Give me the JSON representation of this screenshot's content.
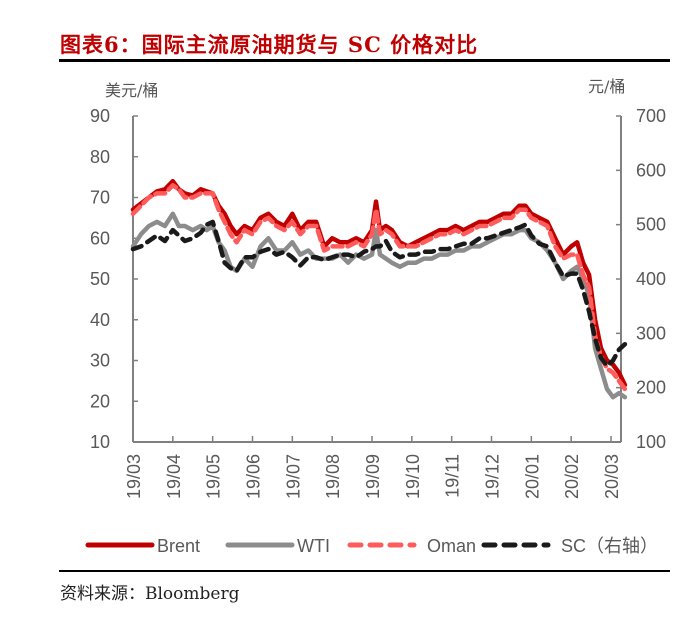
{
  "header": {
    "title": "图表6：国际主流原油期货与 SC 价格对比"
  },
  "footer": {
    "source": "资料来源：Bloomberg"
  },
  "chart_data": {
    "type": "line",
    "title": "图表6：国际主流原油期货与 SC 价格对比",
    "ylabel": "美元/桶",
    "y2label": "元/桶",
    "ylim": [
      10,
      90
    ],
    "y2lim": [
      100,
      700
    ],
    "yticks": [
      "90",
      "80",
      "70",
      "60",
      "50",
      "40",
      "30",
      "20",
      "10"
    ],
    "y2ticks": [
      "700",
      "600",
      "500",
      "400",
      "300",
      "200",
      "100"
    ],
    "categories": [
      "19/03",
      "19/04",
      "19/05",
      "19/06",
      "19/07",
      "19/08",
      "19/09",
      "19/10",
      "19/11",
      "19/12",
      "20/01",
      "20/02",
      "20/03"
    ],
    "x_unit": "months since 19/03",
    "legend_position": "bottom",
    "colors": {
      "brent": "#C00000",
      "wti": "#8C8C8C",
      "oman": "#FF5B5B",
      "sc": "#1A1A1A",
      "axis": "#808080"
    },
    "series": [
      {
        "name": "Brent",
        "axis": "left",
        "style": "solid",
        "x": [
          0,
          0.2,
          0.4,
          0.6,
          0.8,
          1.0,
          1.15,
          1.3,
          1.5,
          1.7,
          1.85,
          2.0,
          2.15,
          2.3,
          2.45,
          2.6,
          2.8,
          3.0,
          3.2,
          3.4,
          3.6,
          3.8,
          4.0,
          4.2,
          4.4,
          4.6,
          4.8,
          5.0,
          5.2,
          5.4,
          5.6,
          5.8,
          6.0,
          6.1,
          6.2,
          6.35,
          6.5,
          6.7,
          6.9,
          7.1,
          7.3,
          7.5,
          7.7,
          7.9,
          8.1,
          8.3,
          8.5,
          8.7,
          8.9,
          9.1,
          9.3,
          9.5,
          9.7,
          9.85,
          10.0,
          10.2,
          10.4,
          10.6,
          10.8,
          11.0,
          11.15,
          11.3,
          11.45,
          11.6,
          11.75,
          11.9,
          12.05,
          12.2,
          12.35
        ],
        "values": [
          67,
          68.5,
          70,
          71.5,
          72,
          74,
          72,
          71,
          70.5,
          72,
          71.5,
          71,
          68,
          66,
          63,
          61,
          63,
          62,
          65,
          66,
          64,
          63,
          66,
          62,
          64,
          64,
          58,
          60,
          59,
          59,
          60,
          59,
          62,
          69,
          62,
          63,
          62,
          59,
          58,
          59,
          60,
          61,
          62,
          62,
          63,
          62,
          63,
          64,
          64,
          65,
          66,
          66,
          68,
          68,
          66,
          65,
          64,
          60,
          56,
          58,
          59,
          54,
          51,
          40,
          33,
          30,
          29,
          27,
          24
        ]
      },
      {
        "name": "WTI",
        "axis": "left",
        "style": "solid",
        "x": [
          0,
          0.2,
          0.4,
          0.6,
          0.8,
          1.0,
          1.15,
          1.3,
          1.5,
          1.7,
          1.85,
          2.0,
          2.15,
          2.3,
          2.45,
          2.6,
          2.8,
          3.0,
          3.2,
          3.4,
          3.6,
          3.8,
          4.0,
          4.2,
          4.4,
          4.6,
          4.8,
          5.0,
          5.2,
          5.4,
          5.6,
          5.8,
          6.0,
          6.1,
          6.2,
          6.35,
          6.5,
          6.7,
          6.9,
          7.1,
          7.3,
          7.5,
          7.7,
          7.9,
          8.1,
          8.3,
          8.5,
          8.7,
          8.9,
          9.1,
          9.3,
          9.5,
          9.7,
          9.85,
          10.0,
          10.2,
          10.4,
          10.6,
          10.8,
          11.0,
          11.15,
          11.3,
          11.45,
          11.6,
          11.75,
          11.9,
          12.05,
          12.2,
          12.35
        ],
        "values": [
          58,
          61,
          63,
          64,
          63,
          66,
          63,
          63,
          62,
          63,
          62,
          63,
          59,
          57,
          53,
          52,
          55,
          53,
          58,
          60,
          57,
          57,
          59,
          56,
          57,
          55,
          55,
          55,
          56,
          54,
          56,
          55,
          56,
          62,
          56,
          55,
          54,
          53,
          54,
          54,
          55,
          55,
          56,
          56,
          57,
          57,
          58,
          58,
          59,
          60,
          61,
          61,
          62,
          62,
          60,
          59,
          57,
          54,
          50,
          52,
          53,
          50,
          46,
          33,
          28,
          23,
          21,
          22,
          21
        ]
      },
      {
        "name": "Oman",
        "axis": "left",
        "style": "dashed",
        "x": [
          0,
          0.2,
          0.4,
          0.6,
          0.8,
          1.0,
          1.15,
          1.3,
          1.5,
          1.7,
          1.85,
          2.0,
          2.15,
          2.3,
          2.45,
          2.6,
          2.8,
          3.0,
          3.2,
          3.4,
          3.6,
          3.8,
          4.0,
          4.2,
          4.4,
          4.6,
          4.8,
          5.0,
          5.2,
          5.4,
          5.6,
          5.8,
          6.0,
          6.1,
          6.2,
          6.35,
          6.5,
          6.7,
          6.9,
          7.1,
          7.3,
          7.5,
          7.7,
          7.9,
          8.1,
          8.3,
          8.5,
          8.7,
          8.9,
          9.1,
          9.3,
          9.5,
          9.7,
          9.85,
          10.0,
          10.2,
          10.4,
          10.6,
          10.8,
          11.0,
          11.15,
          11.3,
          11.45,
          11.6,
          11.75,
          11.9,
          12.05,
          12.2,
          12.35
        ],
        "values": [
          66,
          68,
          70,
          71,
          71,
          73,
          72,
          70,
          70,
          71,
          71,
          71,
          67,
          64,
          61,
          59,
          62,
          61,
          64,
          65,
          63,
          62,
          64,
          61,
          63,
          63,
          57,
          58,
          58,
          58,
          59,
          58,
          61,
          67,
          61,
          62,
          61,
          58,
          58,
          58,
          59,
          60,
          61,
          61,
          62,
          61,
          62,
          63,
          63,
          64,
          65,
          65,
          67,
          67,
          65,
          64,
          63,
          58,
          55,
          56,
          56,
          51,
          48,
          36,
          31,
          28,
          27,
          25,
          23
        ]
      },
      {
        "name": "SC（右轴）",
        "axis": "right",
        "style": "dashed",
        "x": [
          0,
          0.2,
          0.4,
          0.6,
          0.8,
          1.0,
          1.15,
          1.3,
          1.5,
          1.7,
          1.85,
          2.0,
          2.15,
          2.3,
          2.45,
          2.6,
          2.8,
          3.0,
          3.2,
          3.4,
          3.6,
          3.8,
          4.0,
          4.2,
          4.4,
          4.6,
          4.8,
          5.0,
          5.2,
          5.4,
          5.6,
          5.8,
          6.0,
          6.1,
          6.2,
          6.35,
          6.5,
          6.7,
          6.9,
          7.1,
          7.3,
          7.5,
          7.7,
          7.9,
          8.1,
          8.3,
          8.5,
          8.7,
          8.9,
          9.1,
          9.3,
          9.5,
          9.7,
          9.85,
          10.0,
          10.2,
          10.4,
          10.6,
          10.8,
          11.0,
          11.15,
          11.3,
          11.45,
          11.6,
          11.75,
          11.9,
          12.05,
          12.2,
          12.35
        ],
        "values": [
          455,
          460,
          470,
          480,
          470,
          490,
          480,
          470,
          475,
          485,
          500,
          505,
          470,
          430,
          420,
          415,
          440,
          440,
          450,
          455,
          445,
          450,
          440,
          425,
          440,
          440,
          435,
          440,
          445,
          445,
          440,
          450,
          455,
          460,
          460,
          470,
          450,
          440,
          445,
          445,
          450,
          450,
          455,
          455,
          460,
          465,
          465,
          475,
          475,
          480,
          485,
          490,
          495,
          500,
          480,
          465,
          460,
          430,
          405,
          410,
          410,
          380,
          340,
          290,
          255,
          240,
          250,
          270,
          280
        ]
      }
    ]
  },
  "legend": [
    {
      "label": "Brent"
    },
    {
      "label": "WTI"
    },
    {
      "label": "Oman"
    },
    {
      "label": "SC（右轴）"
    }
  ]
}
